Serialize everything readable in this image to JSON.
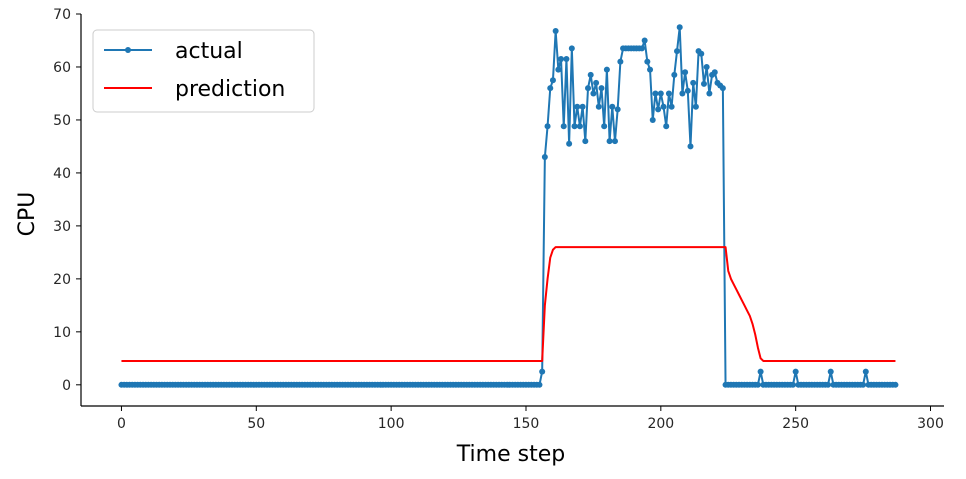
{
  "chart_data": {
    "type": "line",
    "xlabel": "Time step",
    "ylabel": "CPU",
    "xlim": [
      -15,
      305
    ],
    "ylim": [
      -4,
      70
    ],
    "x_ticks": [
      0,
      50,
      100,
      150,
      200,
      250,
      300
    ],
    "y_ticks": [
      0,
      10,
      20,
      30,
      40,
      50,
      60,
      70
    ],
    "grid": false,
    "legend_position": "top-left",
    "series": [
      {
        "name": "actual",
        "color": "#1f77b4",
        "marker": "circle",
        "points": [
          [
            0,
            0
          ],
          [
            1,
            0
          ],
          [
            2,
            0
          ],
          [
            3,
            0
          ],
          [
            4,
            0
          ],
          [
            5,
            0
          ],
          [
            6,
            0
          ],
          [
            7,
            0
          ],
          [
            8,
            0
          ],
          [
            9,
            0
          ],
          [
            10,
            0
          ],
          [
            11,
            0
          ],
          [
            12,
            0
          ],
          [
            13,
            0
          ],
          [
            14,
            0
          ],
          [
            15,
            0
          ],
          [
            16,
            0
          ],
          [
            17,
            0
          ],
          [
            18,
            0
          ],
          [
            19,
            0
          ],
          [
            20,
            0
          ],
          [
            21,
            0
          ],
          [
            22,
            0
          ],
          [
            23,
            0
          ],
          [
            24,
            0
          ],
          [
            25,
            0
          ],
          [
            26,
            0
          ],
          [
            27,
            0
          ],
          [
            28,
            0
          ],
          [
            29,
            0
          ],
          [
            30,
            0
          ],
          [
            31,
            0
          ],
          [
            32,
            0
          ],
          [
            33,
            0
          ],
          [
            34,
            0
          ],
          [
            35,
            0
          ],
          [
            36,
            0
          ],
          [
            37,
            0
          ],
          [
            38,
            0
          ],
          [
            39,
            0
          ],
          [
            40,
            0
          ],
          [
            41,
            0
          ],
          [
            42,
            0
          ],
          [
            43,
            0
          ],
          [
            44,
            0
          ],
          [
            45,
            0
          ],
          [
            46,
            0
          ],
          [
            47,
            0
          ],
          [
            48,
            0
          ],
          [
            49,
            0
          ],
          [
            50,
            0
          ],
          [
            51,
            0
          ],
          [
            52,
            0
          ],
          [
            53,
            0
          ],
          [
            54,
            0
          ],
          [
            55,
            0
          ],
          [
            56,
            0
          ],
          [
            57,
            0
          ],
          [
            58,
            0
          ],
          [
            59,
            0
          ],
          [
            60,
            0
          ],
          [
            61,
            0
          ],
          [
            62,
            0
          ],
          [
            63,
            0
          ],
          [
            64,
            0
          ],
          [
            65,
            0
          ],
          [
            66,
            0
          ],
          [
            67,
            0
          ],
          [
            68,
            0
          ],
          [
            69,
            0
          ],
          [
            70,
            0
          ],
          [
            71,
            0
          ],
          [
            72,
            0
          ],
          [
            73,
            0
          ],
          [
            74,
            0
          ],
          [
            75,
            0
          ],
          [
            76,
            0
          ],
          [
            77,
            0
          ],
          [
            78,
            0
          ],
          [
            79,
            0
          ],
          [
            80,
            0
          ],
          [
            81,
            0
          ],
          [
            82,
            0
          ],
          [
            83,
            0
          ],
          [
            84,
            0
          ],
          [
            85,
            0
          ],
          [
            86,
            0
          ],
          [
            87,
            0
          ],
          [
            88,
            0
          ],
          [
            89,
            0
          ],
          [
            90,
            0
          ],
          [
            91,
            0
          ],
          [
            92,
            0
          ],
          [
            93,
            0
          ],
          [
            94,
            0
          ],
          [
            95,
            0
          ],
          [
            96,
            0
          ],
          [
            97,
            0
          ],
          [
            98,
            0
          ],
          [
            99,
            0
          ],
          [
            100,
            0
          ],
          [
            101,
            0
          ],
          [
            102,
            0
          ],
          [
            103,
            0
          ],
          [
            104,
            0
          ],
          [
            105,
            0
          ],
          [
            106,
            0
          ],
          [
            107,
            0
          ],
          [
            108,
            0
          ],
          [
            109,
            0
          ],
          [
            110,
            0
          ],
          [
            111,
            0
          ],
          [
            112,
            0
          ],
          [
            113,
            0
          ],
          [
            114,
            0
          ],
          [
            115,
            0
          ],
          [
            116,
            0
          ],
          [
            117,
            0
          ],
          [
            118,
            0
          ],
          [
            119,
            0
          ],
          [
            120,
            0
          ],
          [
            121,
            0
          ],
          [
            122,
            0
          ],
          [
            123,
            0
          ],
          [
            124,
            0
          ],
          [
            125,
            0
          ],
          [
            126,
            0
          ],
          [
            127,
            0
          ],
          [
            128,
            0
          ],
          [
            129,
            0
          ],
          [
            130,
            0
          ],
          [
            131,
            0
          ],
          [
            132,
            0
          ],
          [
            133,
            0
          ],
          [
            134,
            0
          ],
          [
            135,
            0
          ],
          [
            136,
            0
          ],
          [
            137,
            0
          ],
          [
            138,
            0
          ],
          [
            139,
            0
          ],
          [
            140,
            0
          ],
          [
            141,
            0
          ],
          [
            142,
            0
          ],
          [
            143,
            0
          ],
          [
            144,
            0
          ],
          [
            145,
            0
          ],
          [
            146,
            0
          ],
          [
            147,
            0
          ],
          [
            148,
            0
          ],
          [
            149,
            0
          ],
          [
            150,
            0
          ],
          [
            151,
            0
          ],
          [
            152,
            0
          ],
          [
            153,
            0
          ],
          [
            154,
            0
          ],
          [
            155,
            0
          ],
          [
            156,
            2.5
          ],
          [
            157,
            43
          ],
          [
            158,
            48.8
          ],
          [
            159,
            56
          ],
          [
            160,
            57.5
          ],
          [
            161,
            66.8
          ],
          [
            162,
            59.5
          ],
          [
            163,
            61.5
          ],
          [
            164,
            48.8
          ],
          [
            165,
            61.5
          ],
          [
            166,
            45.5
          ],
          [
            167,
            63.5
          ],
          [
            168,
            48.8
          ],
          [
            169,
            52.5
          ],
          [
            170,
            48.8
          ],
          [
            171,
            52.5
          ],
          [
            172,
            46
          ],
          [
            173,
            56
          ],
          [
            174,
            58.5
          ],
          [
            175,
            55
          ],
          [
            176,
            57
          ],
          [
            177,
            52.5
          ],
          [
            178,
            56
          ],
          [
            179,
            48.8
          ],
          [
            180,
            59.5
          ],
          [
            181,
            46
          ],
          [
            182,
            52.5
          ],
          [
            183,
            46
          ],
          [
            184,
            52
          ],
          [
            185,
            61
          ],
          [
            186,
            63.5
          ],
          [
            187,
            63.5
          ],
          [
            188,
            63.5
          ],
          [
            189,
            63.5
          ],
          [
            190,
            63.5
          ],
          [
            191,
            63.5
          ],
          [
            192,
            63.5
          ],
          [
            193,
            63.5
          ],
          [
            194,
            65
          ],
          [
            195,
            61
          ],
          [
            196,
            59.5
          ],
          [
            197,
            50
          ],
          [
            198,
            55
          ],
          [
            199,
            52
          ],
          [
            200,
            55
          ],
          [
            201,
            52.5
          ],
          [
            202,
            48.8
          ],
          [
            203,
            55
          ],
          [
            204,
            52.5
          ],
          [
            205,
            58.5
          ],
          [
            206,
            63
          ],
          [
            207,
            67.5
          ],
          [
            208,
            55
          ],
          [
            209,
            59
          ],
          [
            210,
            55.5
          ],
          [
            211,
            45
          ],
          [
            212,
            57
          ],
          [
            213,
            52.5
          ],
          [
            214,
            63
          ],
          [
            215,
            62.5
          ],
          [
            216,
            56.8
          ],
          [
            217,
            60
          ],
          [
            218,
            55
          ],
          [
            219,
            58.5
          ],
          [
            220,
            59
          ],
          [
            221,
            57
          ],
          [
            222,
            56.5
          ],
          [
            223,
            56
          ],
          [
            224,
            0
          ],
          [
            225,
            0
          ],
          [
            226,
            0
          ],
          [
            227,
            0
          ],
          [
            228,
            0
          ],
          [
            229,
            0
          ],
          [
            230,
            0
          ],
          [
            231,
            0
          ],
          [
            232,
            0
          ],
          [
            233,
            0
          ],
          [
            234,
            0
          ],
          [
            235,
            0
          ],
          [
            236,
            0
          ],
          [
            237,
            2.5
          ],
          [
            238,
            0
          ],
          [
            239,
            0
          ],
          [
            240,
            0
          ],
          [
            241,
            0
          ],
          [
            242,
            0
          ],
          [
            243,
            0
          ],
          [
            244,
            0
          ],
          [
            245,
            0
          ],
          [
            246,
            0
          ],
          [
            247,
            0
          ],
          [
            248,
            0
          ],
          [
            249,
            0
          ],
          [
            250,
            2.5
          ],
          [
            251,
            0
          ],
          [
            252,
            0
          ],
          [
            253,
            0
          ],
          [
            254,
            0
          ],
          [
            255,
            0
          ],
          [
            256,
            0
          ],
          [
            257,
            0
          ],
          [
            258,
            0
          ],
          [
            259,
            0
          ],
          [
            260,
            0
          ],
          [
            261,
            0
          ],
          [
            262,
            0
          ],
          [
            263,
            2.5
          ],
          [
            264,
            0
          ],
          [
            265,
            0
          ],
          [
            266,
            0
          ],
          [
            267,
            0
          ],
          [
            268,
            0
          ],
          [
            269,
            0
          ],
          [
            270,
            0
          ],
          [
            271,
            0
          ],
          [
            272,
            0
          ],
          [
            273,
            0
          ],
          [
            274,
            0
          ],
          [
            275,
            0
          ],
          [
            276,
            2.5
          ],
          [
            277,
            0
          ],
          [
            278,
            0
          ],
          [
            279,
            0
          ],
          [
            280,
            0
          ],
          [
            281,
            0
          ],
          [
            282,
            0
          ],
          [
            283,
            0
          ],
          [
            284,
            0
          ],
          [
            285,
            0
          ],
          [
            286,
            0
          ],
          [
            287,
            0
          ]
        ]
      },
      {
        "name": "prediction",
        "color": "#ff0000",
        "marker": "none",
        "points": [
          [
            0,
            4.5
          ],
          [
            155,
            4.5
          ],
          [
            156,
            4.5
          ],
          [
            157,
            15
          ],
          [
            158,
            20
          ],
          [
            159,
            24
          ],
          [
            160,
            25.5
          ],
          [
            161,
            26
          ],
          [
            224,
            26
          ],
          [
            225,
            21.5
          ],
          [
            226,
            20
          ],
          [
            227,
            19
          ],
          [
            228,
            18
          ],
          [
            229,
            17
          ],
          [
            230,
            16
          ],
          [
            231,
            15
          ],
          [
            232,
            14
          ],
          [
            233,
            13
          ],
          [
            234,
            11.5
          ],
          [
            235,
            9.5
          ],
          [
            236,
            7
          ],
          [
            237,
            5
          ],
          [
            238,
            4.5
          ],
          [
            287,
            4.5
          ]
        ]
      }
    ]
  }
}
